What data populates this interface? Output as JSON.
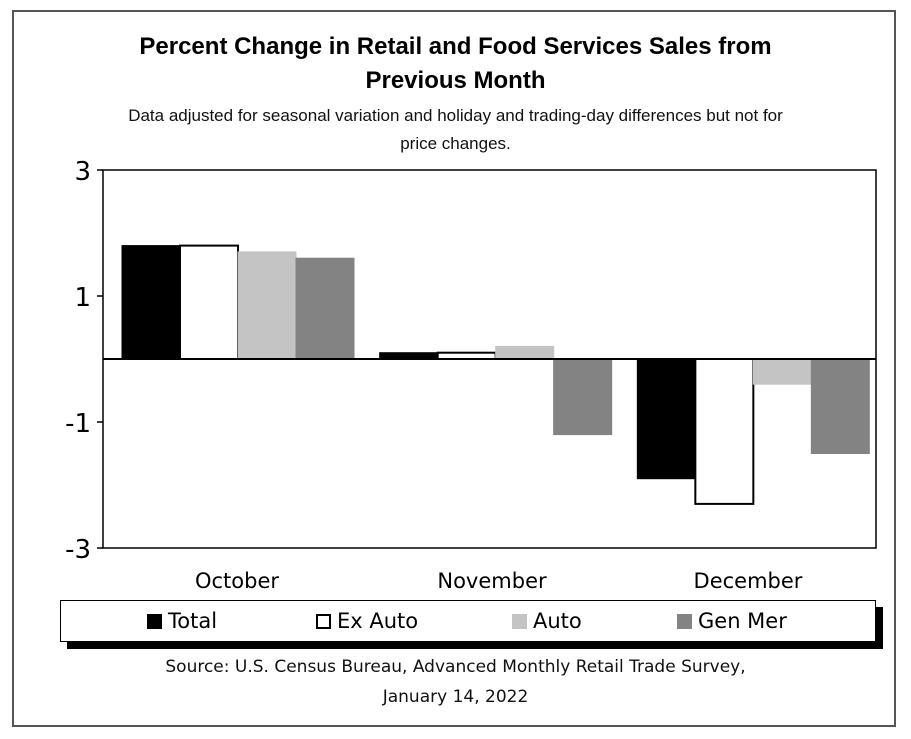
{
  "chart_data": {
    "type": "bar",
    "title": "Percent Change in Retail and Food Services Sales from Previous Month",
    "title_lines": [
      "Percent Change in Retail and Food Services Sales from",
      "Previous Month"
    ],
    "subtitle_lines": [
      "Data adjusted for seasonal variation and holiday and trading-day differences but not for",
      "price changes."
    ],
    "categories": [
      "October",
      "November",
      "December"
    ],
    "series": [
      {
        "name": "Total",
        "color": "#000000",
        "stroke": "#000000",
        "values": [
          1.8,
          0.1,
          -1.9
        ]
      },
      {
        "name": "Ex Auto",
        "color": "#ffffff",
        "stroke": "#000000",
        "values": [
          1.8,
          0.1,
          -2.3
        ]
      },
      {
        "name": "Auto",
        "color": "#c4c4c4",
        "stroke": "#c4c4c4",
        "values": [
          1.7,
          0.2,
          -0.4
        ]
      },
      {
        "name": "Gen Mer",
        "color": "#838383",
        "stroke": "#838383",
        "values": [
          1.6,
          -1.2,
          -1.5
        ]
      }
    ],
    "ylim": [
      -3,
      3
    ],
    "yticks": [
      3,
      1,
      -1,
      -3
    ],
    "xlabel": "",
    "ylabel": "",
    "legend_position": "bottom",
    "source_lines": [
      "Source: U.S. Census Bureau, Advanced Monthly Retail Trade Survey,",
      "January 14, 2022"
    ]
  }
}
